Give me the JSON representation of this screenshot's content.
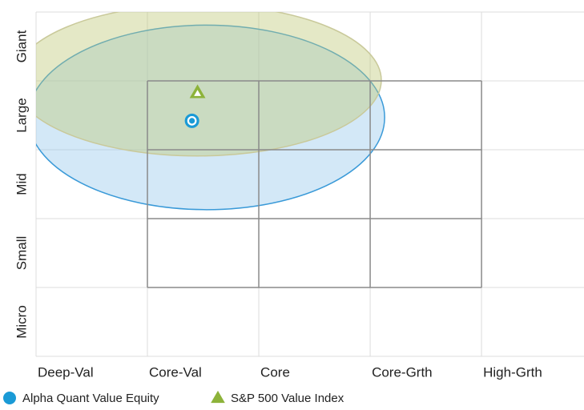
{
  "chart_data": {
    "type": "scatter",
    "x_categories": [
      "Deep-Val",
      "Core-Val",
      "Core",
      "Core-Grth",
      "High-Grth"
    ],
    "y_categories": [
      "Micro",
      "Small",
      "Mid",
      "Large",
      "Giant"
    ],
    "xlim": [
      0,
      4.92
    ],
    "ylim": [
      0,
      5
    ],
    "style_box": {
      "x": [
        1,
        4
      ],
      "y": [
        1,
        4
      ]
    },
    "series": [
      {
        "name": "Alpha Quant Value Equity",
        "color": "#1a9ad6",
        "marker": "circle",
        "x": 1.4,
        "y": 3.42,
        "zone": {
          "cx": 1.53,
          "cy": 3.47,
          "rx": 1.6,
          "ry": 1.34
        }
      },
      {
        "name": "S&P 500 Value Index",
        "color": "#8db33a",
        "marker": "triangle",
        "x": 1.45,
        "y": 3.83,
        "zone": {
          "cx": 1.45,
          "cy": 4.01,
          "rx": 1.65,
          "ry": 1.1
        }
      }
    ]
  }
}
